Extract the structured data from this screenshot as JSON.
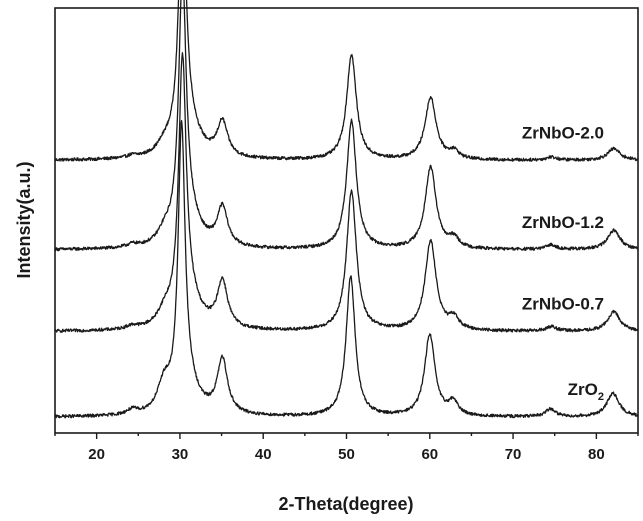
{
  "chart_data": {
    "type": "line",
    "xlabel": "2-Theta(degree)",
    "ylabel": "Intensity(a.u.)",
    "xlim": [
      15,
      85
    ],
    "x_ticks": [
      20,
      30,
      40,
      50,
      60,
      70,
      80
    ],
    "y_ticks_labeled": false,
    "legend": "none",
    "grid": false,
    "line_color": "#1a1a1a",
    "series": [
      {
        "name": "ZrNbO-2.0",
        "label_main": "ZrNbO-2.0",
        "label_sub": "",
        "baseline": 0.68,
        "noise": 0.004,
        "peaks": [
          [
            24.3,
            0.006,
            0.8
          ],
          [
            28.2,
            0.025,
            1.1
          ],
          [
            30.3,
            0.64,
            0.55
          ],
          [
            31.2,
            0.06,
            1.6
          ],
          [
            35.1,
            0.09,
            0.75
          ],
          [
            50.6,
            0.27,
            0.7
          ],
          [
            60.1,
            0.16,
            0.8
          ],
          [
            62.9,
            0.02,
            0.7
          ],
          [
            74.6,
            0.008,
            0.7
          ],
          [
            82.1,
            0.03,
            0.9
          ]
        ]
      },
      {
        "name": "ZrNbO-1.2",
        "label_main": "ZrNbO-1.2",
        "label_sub": "",
        "baseline": 0.45,
        "noise": 0.004,
        "peaks": [
          [
            24.3,
            0.008,
            0.8
          ],
          [
            28.2,
            0.03,
            1.0
          ],
          [
            30.3,
            0.66,
            0.55
          ],
          [
            31.2,
            0.06,
            1.6
          ],
          [
            35.1,
            0.1,
            0.75
          ],
          [
            50.6,
            0.33,
            0.7
          ],
          [
            60.1,
            0.21,
            0.8
          ],
          [
            62.9,
            0.025,
            0.7
          ],
          [
            74.6,
            0.012,
            0.7
          ],
          [
            82.1,
            0.05,
            0.9
          ]
        ]
      },
      {
        "name": "ZrNbO-0.7",
        "label_main": "ZrNbO-0.7",
        "label_sub": "",
        "baseline": 0.24,
        "noise": 0.004,
        "peaks": [
          [
            24.3,
            0.008,
            0.8
          ],
          [
            28.2,
            0.035,
            1.0
          ],
          [
            30.3,
            0.66,
            0.55
          ],
          [
            31.2,
            0.06,
            1.6
          ],
          [
            35.1,
            0.12,
            0.75
          ],
          [
            50.6,
            0.36,
            0.7
          ],
          [
            60.1,
            0.23,
            0.8
          ],
          [
            62.9,
            0.03,
            0.7
          ],
          [
            74.6,
            0.012,
            0.7
          ],
          [
            82.1,
            0.05,
            0.9
          ]
        ]
      },
      {
        "name": "ZrO2",
        "label_main": "ZrO",
        "label_sub": "2",
        "baseline": 0.02,
        "noise": 0.004,
        "peaks": [
          [
            24.3,
            0.012,
            0.8
          ],
          [
            28.1,
            0.07,
            0.9
          ],
          [
            30.2,
            0.7,
            0.5
          ],
          [
            31.0,
            0.06,
            1.5
          ],
          [
            35.1,
            0.14,
            0.75
          ],
          [
            50.5,
            0.36,
            0.65
          ],
          [
            60.0,
            0.21,
            0.75
          ],
          [
            62.8,
            0.035,
            0.7
          ],
          [
            74.5,
            0.02,
            0.7
          ],
          [
            82.0,
            0.06,
            0.9
          ]
        ]
      }
    ]
  }
}
